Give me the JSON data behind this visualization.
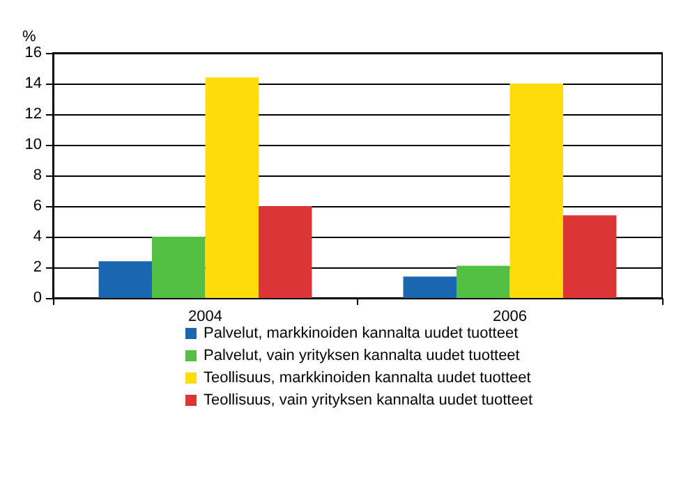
{
  "chart_data": {
    "type": "bar",
    "ylabel": "%",
    "categories": [
      "2004",
      "2006"
    ],
    "series": [
      {
        "name": "Palvelut, markkinoiden kannalta uudet tuotteet",
        "color": "#1a67b0",
        "values": [
          2.4,
          1.4
        ]
      },
      {
        "name": "Palvelut, vain yrityksen kannalta uudet tuotteet",
        "color": "#53c043",
        "values": [
          4.0,
          2.1
        ]
      },
      {
        "name": "Teollisuus, markkinoiden kannalta uudet tuotteet",
        "color": "#ffdc0a",
        "values": [
          14.4,
          14.0
        ]
      },
      {
        "name": "Teollisuus, vain yrityksen kannalta uudet tuotteet",
        "color": "#dc3535",
        "values": [
          6.0,
          5.4
        ]
      }
    ],
    "ylim": [
      0,
      16
    ],
    "yticks": [
      0,
      2,
      4,
      6,
      8,
      10,
      12,
      14,
      16
    ],
    "grid": "y",
    "legend": "bottom"
  }
}
